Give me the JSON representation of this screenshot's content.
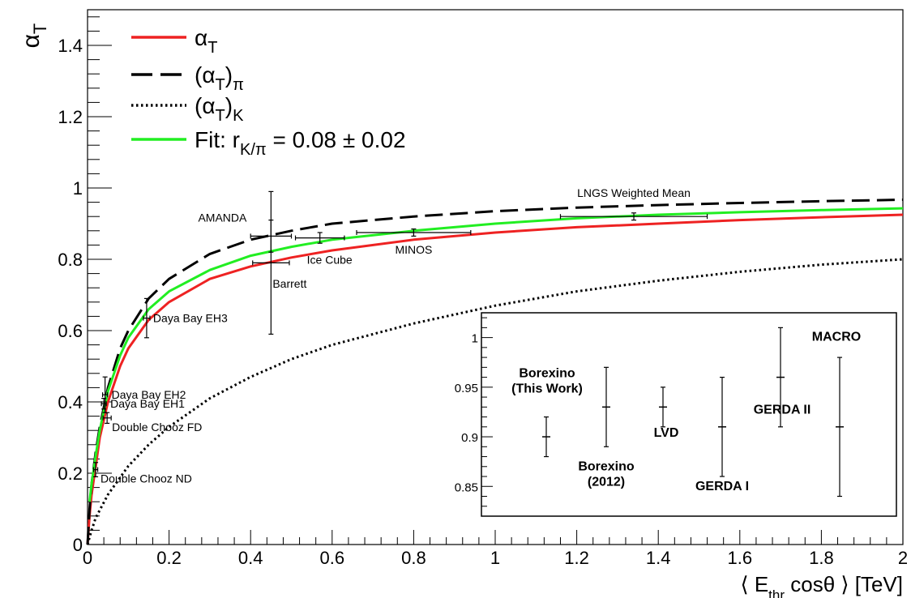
{
  "chart_data": [
    {
      "type": "line",
      "title": "",
      "xlabel": "⟨ E thr cosθ ⟩ [TeV]",
      "xlabel_parts": {
        "pre": "⟨ E",
        "sub": "thr",
        "post": " cosθ ⟩ [TeV]"
      },
      "ylabel": "αT",
      "ylabel_parts": {
        "main": "α",
        "sub": "T"
      },
      "xlim": [
        0,
        2
      ],
      "ylim": [
        0,
        1.5
      ],
      "xticks": [
        0,
        0.2,
        0.4,
        0.6,
        0.8,
        1,
        1.2,
        1.4,
        1.6,
        1.8,
        2
      ],
      "xtick_labels": [
        "0",
        "0.2",
        "0.4",
        "0.6",
        "0.8",
        "1",
        "1.2",
        "1.4",
        "1.6",
        "1.8",
        "2"
      ],
      "yticks": [
        0,
        0.2,
        0.4,
        0.6,
        0.8,
        1,
        1.2,
        1.4
      ],
      "ytick_labels": [
        "0",
        "0.2",
        "0.4",
        "0.6",
        "0.8",
        "1",
        "1.2",
        "1.4"
      ],
      "grid": false,
      "legend_position": "top-left",
      "legend": [
        {
          "label": "αT",
          "label_main": "α",
          "label_sub": "T",
          "label_post": "",
          "style": "solid",
          "color": "#ee2222"
        },
        {
          "label": "(αT)π",
          "label_main": "(α",
          "label_sub": "T",
          "label_post": ")",
          "label_sub2": "π",
          "style": "long-dash",
          "color": "#000000"
        },
        {
          "label": "(αT)K",
          "label_main": "(α",
          "label_sub": "T",
          "label_post": ")",
          "label_sub2": "K",
          "style": "dotted",
          "color": "#000000"
        },
        {
          "label": "Fit: rK/π = 0.08 ± 0.02",
          "label_main": "Fit: r",
          "label_sub": "K/π",
          "label_post": " = 0.08 ± 0.02",
          "style": "solid",
          "color": "#22ee22"
        }
      ],
      "series": [
        {
          "name": "αT",
          "color": "#ee2222",
          "style": "solid",
          "x": [
            0,
            0.005,
            0.01,
            0.02,
            0.03,
            0.05,
            0.08,
            0.1,
            0.15,
            0.2,
            0.3,
            0.4,
            0.5,
            0.6,
            0.8,
            1.0,
            1.2,
            1.4,
            1.6,
            1.8,
            2.0
          ],
          "y": [
            0,
            0.08,
            0.14,
            0.22,
            0.3,
            0.4,
            0.5,
            0.55,
            0.63,
            0.68,
            0.745,
            0.78,
            0.805,
            0.825,
            0.855,
            0.875,
            0.89,
            0.9,
            0.91,
            0.918,
            0.925
          ]
        },
        {
          "name": "(αT)π",
          "color": "#000000",
          "style": "long-dash",
          "x": [
            0,
            0.005,
            0.01,
            0.02,
            0.03,
            0.05,
            0.08,
            0.1,
            0.15,
            0.2,
            0.3,
            0.4,
            0.5,
            0.6,
            0.8,
            1.0,
            1.2,
            1.4,
            1.6,
            1.8,
            2.0
          ],
          "y": [
            0,
            0.1,
            0.17,
            0.26,
            0.33,
            0.44,
            0.55,
            0.6,
            0.69,
            0.745,
            0.815,
            0.855,
            0.88,
            0.9,
            0.92,
            0.935,
            0.945,
            0.952,
            0.958,
            0.963,
            0.967
          ]
        },
        {
          "name": "(αT)K",
          "color": "#000000",
          "style": "dotted",
          "x": [
            0,
            0.01,
            0.02,
            0.05,
            0.1,
            0.15,
            0.2,
            0.3,
            0.4,
            0.5,
            0.6,
            0.8,
            1.0,
            1.2,
            1.4,
            1.6,
            1.8,
            2.0
          ],
          "y": [
            0,
            0.04,
            0.075,
            0.14,
            0.22,
            0.28,
            0.33,
            0.41,
            0.47,
            0.52,
            0.56,
            0.62,
            0.67,
            0.71,
            0.74,
            0.765,
            0.785,
            0.8
          ]
        },
        {
          "name": "Fit: rK/π = 0.08 ± 0.02",
          "color": "#22ee22",
          "style": "solid",
          "x": [
            0.005,
            0.01,
            0.02,
            0.03,
            0.05,
            0.08,
            0.1,
            0.15,
            0.2,
            0.3,
            0.4,
            0.5,
            0.6,
            0.8,
            1.0,
            1.2,
            1.4,
            1.6,
            1.8,
            2.0
          ],
          "y": [
            0.12,
            0.17,
            0.25,
            0.32,
            0.43,
            0.53,
            0.58,
            0.66,
            0.71,
            0.77,
            0.81,
            0.835,
            0.855,
            0.88,
            0.9,
            0.915,
            0.925,
            0.932,
            0.938,
            0.943
          ]
        }
      ],
      "points": [
        {
          "label": "Double Chooz ND",
          "x": 0.02,
          "y": 0.21,
          "xerr": 0.005,
          "yerr": 0.02,
          "label_side": "right-below"
        },
        {
          "label": "Double Chooz FD",
          "x": 0.048,
          "y": 0.355,
          "xerr": 0.01,
          "yerr": 0.015,
          "label_side": "right-below"
        },
        {
          "label": "Daya Bay EH1",
          "x": 0.04,
          "y": 0.395,
          "xerr": 0.006,
          "yerr": 0.015,
          "label_side": "right"
        },
        {
          "label": "Daya Bay EH2",
          "x": 0.043,
          "y": 0.42,
          "xerr": 0.006,
          "yerr": 0.05,
          "label_side": "right"
        },
        {
          "label": "Daya Bay EH3",
          "x": 0.145,
          "y": 0.635,
          "xerr": 0.008,
          "yerr": 0.055,
          "label_side": "right"
        },
        {
          "label": "AMANDA",
          "x": 0.45,
          "y": 0.865,
          "xerr": 0.05,
          "yerr": 0.045,
          "label_side": "left-above"
        },
        {
          "label": "Barrett",
          "x": 0.45,
          "y": 0.79,
          "xerr": 0.045,
          "yerr": 0.2,
          "label_side": "below"
        },
        {
          "label": "Ice Cube",
          "x": 0.57,
          "y": 0.86,
          "xerr": 0.06,
          "yerr": 0.015,
          "label_side": "below"
        },
        {
          "label": "MINOS",
          "x": 0.8,
          "y": 0.875,
          "xerr": 0.14,
          "yerr": 0.01,
          "label_side": "below"
        },
        {
          "label": "LNGS Weighted Mean",
          "x": 1.34,
          "y": 0.92,
          "xerr": 0.18,
          "yerr": 0.01,
          "label_side": "above"
        }
      ]
    },
    {
      "type": "scatter",
      "title": "",
      "ylim": [
        0.82,
        1.025
      ],
      "yticks": [
        0.85,
        0.9,
        0.95,
        1
      ],
      "ytick_labels": [
        "0.85",
        "0.9",
        "0.95",
        "1"
      ],
      "points": [
        {
          "label_lines": [
            "Borexino",
            "(This Work)"
          ],
          "y": 0.9,
          "yerr": 0.02,
          "label_pos": "above"
        },
        {
          "label_lines": [
            "Borexino",
            "(2012)"
          ],
          "y": 0.93,
          "yerr": 0.04,
          "label_pos": "below"
        },
        {
          "label_lines": [
            "LVD"
          ],
          "y": 0.93,
          "yerr": 0.02,
          "label_pos": "below"
        },
        {
          "label_lines": [
            "GERDA I"
          ],
          "y": 0.91,
          "yerr": 0.05,
          "label_pos": "below"
        },
        {
          "label_lines": [
            "GERDA II"
          ],
          "y": 0.96,
          "yerr": 0.05,
          "label_pos": "below-left"
        },
        {
          "label_lines": [
            "MACRO"
          ],
          "y": 0.91,
          "yerr": 0.07,
          "label_pos": "above"
        }
      ]
    }
  ]
}
